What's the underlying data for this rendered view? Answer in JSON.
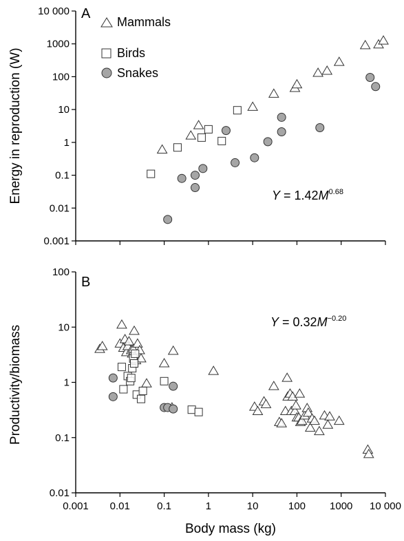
{
  "chart_data": [
    {
      "panel": "A",
      "type": "scatter",
      "ylabel": "Energy in reproduction (W)",
      "xlabel": "",
      "xscale": "log",
      "yscale": "log",
      "xlim": [
        0.001,
        10000
      ],
      "ylim": [
        0.001,
        10000
      ],
      "yticks": [
        "0.001",
        "0.01",
        "0.1",
        "1",
        "10",
        "100",
        "1000",
        "10 000"
      ],
      "equation": {
        "lhs": "Y",
        "mid": " = 1.42",
        "var": "M",
        "exp": "0.68"
      },
      "legend": {
        "placement": "top-left"
      },
      "series": [
        {
          "name": "Mammals",
          "marker": "triangle",
          "x": [
            0.09,
            0.4,
            0.6,
            10,
            30,
            90,
            100,
            300,
            480,
            900,
            3500,
            7000,
            9000
          ],
          "y": [
            0.6,
            1.6,
            3.3,
            12,
            30,
            45,
            58,
            130,
            150,
            280,
            900,
            950,
            1250
          ]
        },
        {
          "name": "Birds",
          "marker": "square",
          "x": [
            0.05,
            0.2,
            0.7,
            1.0,
            2.0,
            4.5
          ],
          "y": [
            0.11,
            0.7,
            1.4,
            2.5,
            1.1,
            9.5
          ]
        },
        {
          "name": "Snakes",
          "marker": "circle",
          "x": [
            0.12,
            0.25,
            0.5,
            0.5,
            0.75,
            2.5,
            4,
            11,
            22,
            45,
            45,
            330,
            4500,
            6000
          ],
          "y": [
            0.0045,
            0.08,
            0.1,
            0.042,
            0.16,
            2.3,
            0.24,
            0.34,
            1.05,
            2.1,
            5.8,
            2.8,
            95,
            50
          ]
        }
      ]
    },
    {
      "panel": "B",
      "type": "scatter",
      "ylabel": "Productivity/biomass",
      "xlabel": "Body mass (kg)",
      "xscale": "log",
      "yscale": "log",
      "xlim": [
        0.001,
        10000
      ],
      "ylim": [
        0.01,
        100
      ],
      "xticks": [
        "0.001",
        "0.01",
        "0.1",
        "1",
        "10",
        "100",
        "1000",
        "10 000"
      ],
      "yticks": [
        "0.01",
        "0.1",
        "1",
        "10",
        "100"
      ],
      "equation": {
        "lhs": "Y",
        "mid": " = 0.32",
        "var": "M",
        "exp": "−0.20"
      },
      "series": [
        {
          "name": "Mammals",
          "marker": "triangle",
          "x": [
            0.0035,
            0.004,
            0.01,
            0.011,
            0.012,
            0.013,
            0.014,
            0.015,
            0.016,
            0.018,
            0.019,
            0.02,
            0.021,
            0.022,
            0.023,
            0.025,
            0.028,
            0.03,
            0.04,
            0.1,
            0.15,
            0.16,
            1.3,
            11,
            13,
            18,
            20,
            30,
            40,
            45,
            55,
            60,
            62,
            70,
            75,
            80,
            90,
            95,
            100,
            110,
            115,
            120,
            130,
            150,
            170,
            180,
            200,
            220,
            250,
            320,
            420,
            500,
            550,
            900,
            4000,
            4200
          ],
          "y": [
            4.0,
            4.5,
            5.0,
            11.0,
            4.2,
            6.0,
            3.5,
            4.5,
            5.5,
            3.8,
            3.3,
            4.0,
            8.5,
            3.0,
            2.5,
            5.0,
            3.8,
            2.7,
            0.95,
            2.2,
            0.35,
            3.7,
            1.6,
            0.36,
            0.3,
            0.45,
            0.4,
            0.85,
            0.19,
            0.18,
            0.3,
            1.2,
            0.55,
            0.62,
            0.3,
            0.55,
            0.3,
            0.38,
            0.23,
            0.23,
            0.62,
            0.19,
            0.2,
            0.25,
            0.34,
            0.28,
            0.15,
            0.22,
            0.2,
            0.13,
            0.25,
            0.17,
            0.24,
            0.2,
            0.06,
            0.05
          ]
        },
        {
          "name": "Birds",
          "marker": "square",
          "x": [
            0.011,
            0.012,
            0.015,
            0.017,
            0.018,
            0.019,
            0.02,
            0.021,
            0.022,
            0.024,
            0.03,
            0.033,
            0.1,
            0.42,
            0.6
          ],
          "y": [
            1.9,
            0.75,
            1.3,
            1.05,
            1.2,
            1.8,
            2.7,
            2.2,
            3.3,
            0.6,
            0.5,
            0.7,
            1.05,
            0.32,
            0.29
          ]
        },
        {
          "name": "Snakes",
          "marker": "circle",
          "x": [
            0.007,
            0.007,
            0.1,
            0.12,
            0.16,
            0.16
          ],
          "y": [
            1.2,
            0.55,
            0.35,
            0.35,
            0.85,
            0.33
          ]
        }
      ]
    }
  ],
  "colors": {
    "axis": "#000000",
    "snake_fill": "#a6a6a6",
    "marker_stroke": "#333333",
    "open_fill": "#ffffff"
  }
}
